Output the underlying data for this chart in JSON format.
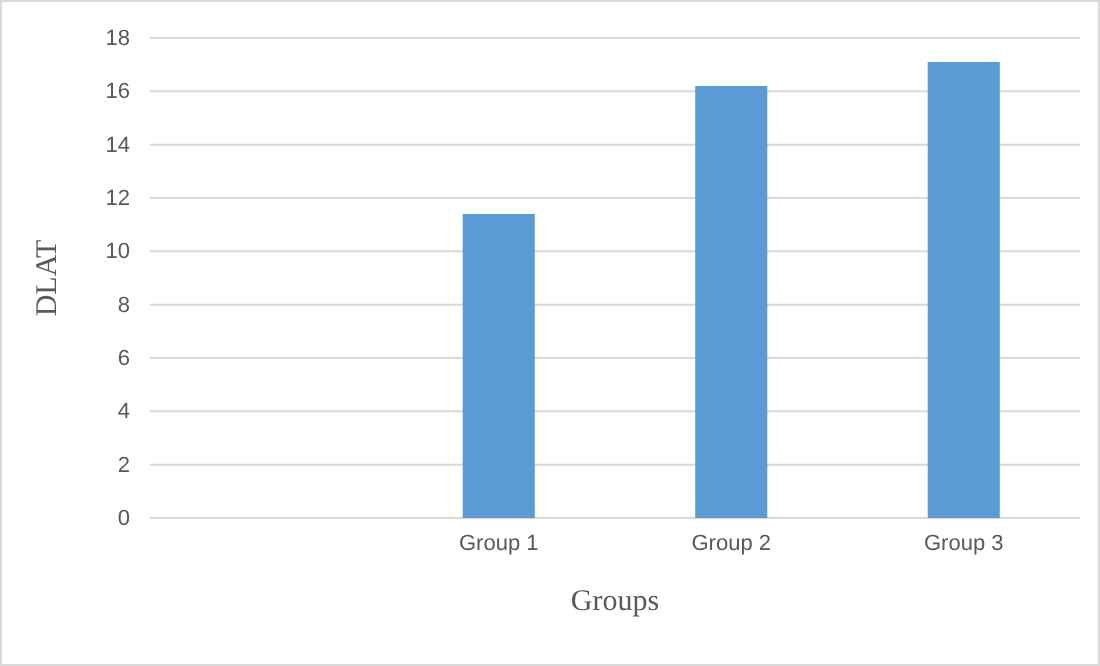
{
  "chart_data": {
    "type": "bar",
    "xlabel": "Groups",
    "ylabel": "DLAT",
    "categories": [
      null,
      "Group 1",
      "Group 2",
      "Group 3"
    ],
    "values": [
      null,
      11.4,
      16.2,
      17.1
    ],
    "color": "#5b9bd5",
    "ylim": [
      0,
      18
    ],
    "yticks": [
      0,
      2,
      4,
      6,
      8,
      10,
      12,
      14,
      16,
      18
    ],
    "grid": "y"
  }
}
